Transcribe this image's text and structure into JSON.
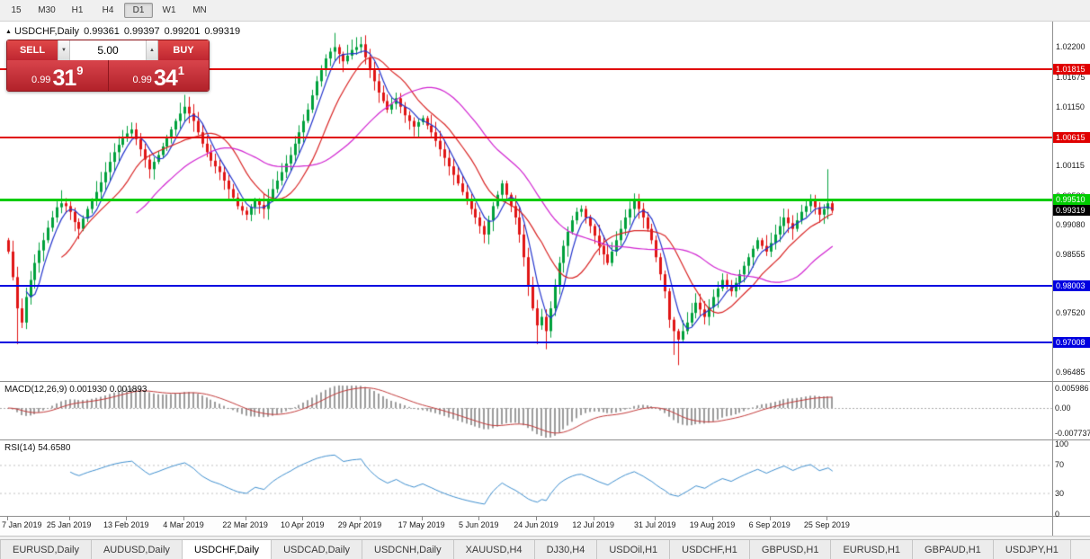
{
  "toolbar": {
    "timeframes": [
      "15",
      "M30",
      "H1",
      "H4",
      "D1",
      "W1",
      "MN"
    ],
    "active_timeframe": "D1"
  },
  "chart": {
    "header": {
      "symbol": "USDCHF,Daily",
      "open": "0.99361",
      "high": "0.99397",
      "low": "0.99201",
      "close": "0.99319"
    }
  },
  "trade_panel": {
    "sell_label": "SELL",
    "buy_label": "BUY",
    "lot_value": "5.00",
    "sell_price": {
      "small": "0.99",
      "big": "31",
      "sup": "9"
    },
    "buy_price": {
      "small": "0.99",
      "big": "34",
      "sup": "1"
    }
  },
  "icons": {
    "symbol_triangle": "▲",
    "spin_up": "▲",
    "spin_down": "▼"
  },
  "price_axis": {
    "ticks": [
      {
        "label": "1.02200",
        "value": 1.022
      },
      {
        "label": "1.01675",
        "value": 1.01675
      },
      {
        "label": "1.01150",
        "value": 1.0115
      },
      {
        "label": "1.00115",
        "value": 1.00115
      },
      {
        "label": "0.99580",
        "value": 0.9958
      },
      {
        "label": "0.99080",
        "value": 0.9908
      },
      {
        "label": "0.98555",
        "value": 0.98555
      },
      {
        "label": "0.97520",
        "value": 0.9752
      },
      {
        "label": "0.96485",
        "value": 0.96485
      }
    ]
  },
  "levels": [
    {
      "label": "1.01815",
      "value": 1.01815,
      "color": "#e00000",
      "width": 2
    },
    {
      "label": "1.00615",
      "value": 1.00615,
      "color": "#e00000",
      "width": 2
    },
    {
      "label": "0.99510",
      "value": 0.9951,
      "color": "#00cc00",
      "width": 3
    },
    {
      "label": "0.98003",
      "value": 0.98003,
      "color": "#0000e0",
      "width": 2
    },
    {
      "label": "0.97008",
      "value": 0.97008,
      "color": "#0000e0",
      "width": 2
    }
  ],
  "current_price_tag": {
    "label": "0.99319",
    "value": 0.99319,
    "bg": "#000000"
  },
  "macd": {
    "label": "MACD(12,26,9) 0.001930 0.001893",
    "axis_top": "0.005986",
    "axis_zero": "0.00",
    "axis_bottom": "-0.007737"
  },
  "rsi": {
    "label": "RSI(14) 54.6580",
    "axis": [
      {
        "label": "100",
        "value": 100
      },
      {
        "label": "70",
        "value": 70
      },
      {
        "label": "30",
        "value": 30
      },
      {
        "label": "0",
        "value": 0
      }
    ],
    "guide_levels": [
      70,
      30
    ]
  },
  "date_axis": [
    {
      "label": "7 Jan 2019",
      "i": 0
    },
    {
      "label": "25 Jan 2019",
      "i": 14
    },
    {
      "label": "13 Feb 2019",
      "i": 27
    },
    {
      "label": "4 Mar 2019",
      "i": 40
    },
    {
      "label": "22 Mar 2019",
      "i": 54
    },
    {
      "label": "10 Apr 2019",
      "i": 67
    },
    {
      "label": "29 Apr 2019",
      "i": 80
    },
    {
      "label": "17 May 2019",
      "i": 94
    },
    {
      "label": "5 Jun 2019",
      "i": 107
    },
    {
      "label": "24 Jun 2019",
      "i": 120
    },
    {
      "label": "12 Jul 2019",
      "i": 133
    },
    {
      "label": "31 Jul 2019",
      "i": 147
    },
    {
      "label": "19 Aug 2019",
      "i": 160
    },
    {
      "label": "6 Sep 2019",
      "i": 173
    },
    {
      "label": "25 Sep 2019",
      "i": 186
    }
  ],
  "tabs": {
    "items": [
      "EURUSD,Daily",
      "AUDUSD,Daily",
      "USDCHF,Daily",
      "USDCAD,Daily",
      "USDCNH,Daily",
      "XAUUSD,H4",
      "DJ30,H4",
      "USDOil,H1",
      "USDCHF,H1",
      "GBPUSD,H1",
      "EURUSD,H1",
      "GBPAUD,H1",
      "USDJPY,H1"
    ],
    "active": "USDCHF,Daily"
  },
  "colors": {
    "candle_up": "#00a13c",
    "candle_down": "#e01515",
    "ma_fast": "#2233cc",
    "ma_mid": "#d82222",
    "ma_slow": "#d022d0",
    "macd_hist": "#9c9c9c",
    "macd_signal": "#c23a3a",
    "rsi_line": "#3e8ece",
    "level_red": "#e00000",
    "level_green": "#00cc00",
    "level_blue": "#0000e0",
    "trade_red_top": "#d8444b",
    "trade_red_bottom": "#b2222a"
  },
  "chart_data": {
    "type": "candlestick",
    "symbol": "USDCHF",
    "timeframe": "Daily",
    "price_axis_range": {
      "top": 1.0265,
      "bottom": 0.9632
    },
    "first_open": 0.988,
    "closes": [
      0.986,
      0.9815,
      0.976,
      0.9735,
      0.978,
      0.981,
      0.984,
      0.9862,
      0.988,
      0.9902,
      0.992,
      0.9938,
      0.9945,
      0.994,
      0.993,
      0.9912,
      0.99,
      0.9918,
      0.9935,
      0.995,
      0.9965,
      0.9982,
      1.0,
      1.0018,
      1.0035,
      1.0048,
      1.006,
      1.0068,
      1.0075,
      1.0058,
      1.004,
      1.0022,
      1.0005,
      1.0018,
      1.003,
      1.0045,
      1.006,
      1.0075,
      1.009,
      1.0103,
      1.0115,
      1.0103,
      1.009,
      1.007,
      1.005,
      1.0035,
      1.002,
      1.001,
      1.0,
      0.9985,
      0.997,
      0.9955,
      0.994,
      0.9932,
      0.9925,
      0.9938,
      0.995,
      0.9942,
      0.9935,
      0.9952,
      0.997,
      0.9985,
      1.0,
      1.0015,
      1.003,
      1.005,
      1.007,
      1.009,
      1.011,
      1.0135,
      1.016,
      1.018,
      1.02,
      1.0212,
      1.022,
      1.0208,
      1.0195,
      1.0205,
      1.0215,
      1.022,
      1.0225,
      1.0202,
      1.018,
      1.016,
      1.014,
      1.0125,
      1.011,
      1.012,
      1.013,
      1.0115,
      1.01,
      1.009,
      1.008,
      1.0088,
      1.0095,
      1.0082,
      1.007,
      1.0055,
      1.004,
      1.0025,
      1.001,
      0.9995,
      0.998,
      0.9965,
      0.995,
      0.9935,
      0.992,
      0.9905,
      0.989,
      0.9915,
      0.994,
      0.996,
      0.998,
      0.996,
      0.994,
      0.992,
      0.989,
      0.985,
      0.98,
      0.976,
      0.973,
      0.9745,
      0.972,
      0.976,
      0.98,
      0.984,
      0.987,
      0.9895,
      0.9915,
      0.993,
      0.9935,
      0.992,
      0.9905,
      0.9888,
      0.987,
      0.9855,
      0.984,
      0.986,
      0.988,
      0.99,
      0.992,
      0.9935,
      0.995,
      0.9935,
      0.992,
      0.99,
      0.988,
      0.985,
      0.982,
      0.979,
      0.974,
      0.972,
      0.9705,
      0.972,
      0.9735,
      0.9752,
      0.977,
      0.9758,
      0.9745,
      0.9762,
      0.978,
      0.9795,
      0.981,
      0.98,
      0.979,
      0.9805,
      0.982,
      0.9835,
      0.985,
      0.9865,
      0.988,
      0.987,
      0.986,
      0.9875,
      0.989,
      0.9905,
      0.992,
      0.991,
      0.99,
      0.9915,
      0.993,
      0.994,
      0.995,
      0.9938,
      0.9925,
      0.9935,
      0.9945,
      0.9932
    ],
    "spike_highs": {
      "12": 0.9968,
      "40": 1.0136,
      "74": 1.0245,
      "80": 1.0238,
      "186": 1.0005
    },
    "spike_lows": {
      "2": 0.9697,
      "120": 0.9697,
      "122": 0.9688,
      "151": 0.9678,
      "152": 0.966
    },
    "moving_averages": [
      {
        "period": 5,
        "color_key": "ma_fast"
      },
      {
        "period": 13,
        "color_key": "ma_mid"
      },
      {
        "period": 30,
        "color_key": "ma_slow"
      }
    ],
    "indicators": {
      "macd": {
        "fast": 12,
        "slow": 26,
        "signal": 9
      },
      "rsi": {
        "period": 14
      }
    }
  }
}
